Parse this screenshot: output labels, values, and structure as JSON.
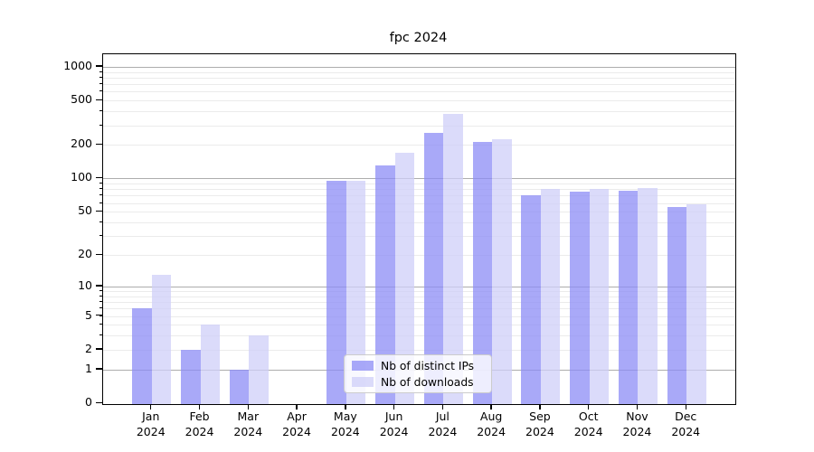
{
  "chart_data": {
    "type": "bar",
    "title": "fpc 2024",
    "categories": [
      "Jan 2024",
      "Feb 2024",
      "Mar 2024",
      "Apr 2024",
      "May 2024",
      "Jun 2024",
      "Jul 2024",
      "Aug 2024",
      "Sep 2024",
      "Oct 2024",
      "Nov 2024",
      "Dec 2024"
    ],
    "series": [
      {
        "name": "Nb of distinct IPs",
        "color": "#8c8cf6",
        "values": [
          6,
          2,
          1,
          0,
          95,
          130,
          255,
          215,
          70,
          76,
          78,
          55
        ]
      },
      {
        "name": "Nb of downloads",
        "color": "#cfcff8",
        "values": [
          13,
          4,
          3,
          0,
          95,
          170,
          380,
          225,
          80,
          80,
          82,
          58
        ]
      }
    ],
    "y_axis": {
      "scale": "log1p",
      "tick_labels": [
        0,
        1,
        2,
        5,
        10,
        20,
        50,
        100,
        200,
        500,
        1000
      ],
      "range": [
        0,
        1300
      ]
    },
    "grid": {
      "on": true,
      "major_lines": [
        1,
        10,
        100,
        1000
      ],
      "minor_lines": [
        2,
        3,
        4,
        5,
        6,
        7,
        8,
        9,
        20,
        30,
        40,
        50,
        60,
        70,
        80,
        90,
        200,
        300,
        400,
        500,
        600,
        700,
        800,
        900
      ]
    },
    "legend": {
      "position": "lower-center"
    },
    "xlabel": "",
    "ylabel": ""
  }
}
